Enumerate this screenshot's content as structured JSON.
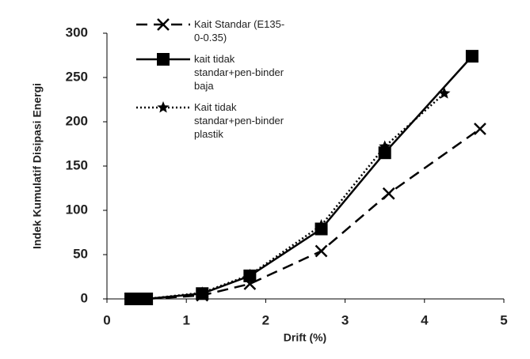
{
  "chart_data": {
    "type": "line",
    "x_label": "Drift (%)",
    "y_label": "Indek Kumulatif Disipasi Energi",
    "xlim": [
      0,
      5
    ],
    "xticks": [
      0,
      1,
      2,
      3,
      4,
      5
    ],
    "ylim": [
      0,
      300
    ],
    "yticks": [
      0,
      50,
      100,
      150,
      200,
      250,
      300
    ],
    "grid": false,
    "legend": "upper left",
    "series": [
      {
        "name": "Kait Standar (E135-0-0.35)",
        "color": "#000000",
        "dash": "dashed",
        "marker": "x",
        "x": [
          0.3,
          0.4,
          0.5,
          1.2,
          1.8,
          2.7,
          3.55,
          4.7
        ],
        "values": [
          0,
          0,
          0,
          4,
          17,
          54,
          119,
          192
        ]
      },
      {
        "name": "kait tidak standar+pen-binder baja",
        "color": "#000000",
        "dash": "solid",
        "marker": "square",
        "x": [
          0.3,
          0.4,
          0.5,
          1.2,
          1.8,
          2.7,
          3.5,
          4.6
        ],
        "values": [
          0,
          0,
          0,
          6,
          26,
          79,
          165,
          274
        ]
      },
      {
        "name": "Kait tidak standar+pen-binder plastik",
        "color": "#000000",
        "dash": "dotted",
        "marker": "star",
        "x": [
          0.3,
          0.4,
          0.5,
          1.2,
          1.8,
          2.7,
          3.5,
          4.25
        ],
        "values": [
          0,
          0,
          0,
          7,
          27,
          83,
          172,
          232
        ]
      }
    ]
  }
}
